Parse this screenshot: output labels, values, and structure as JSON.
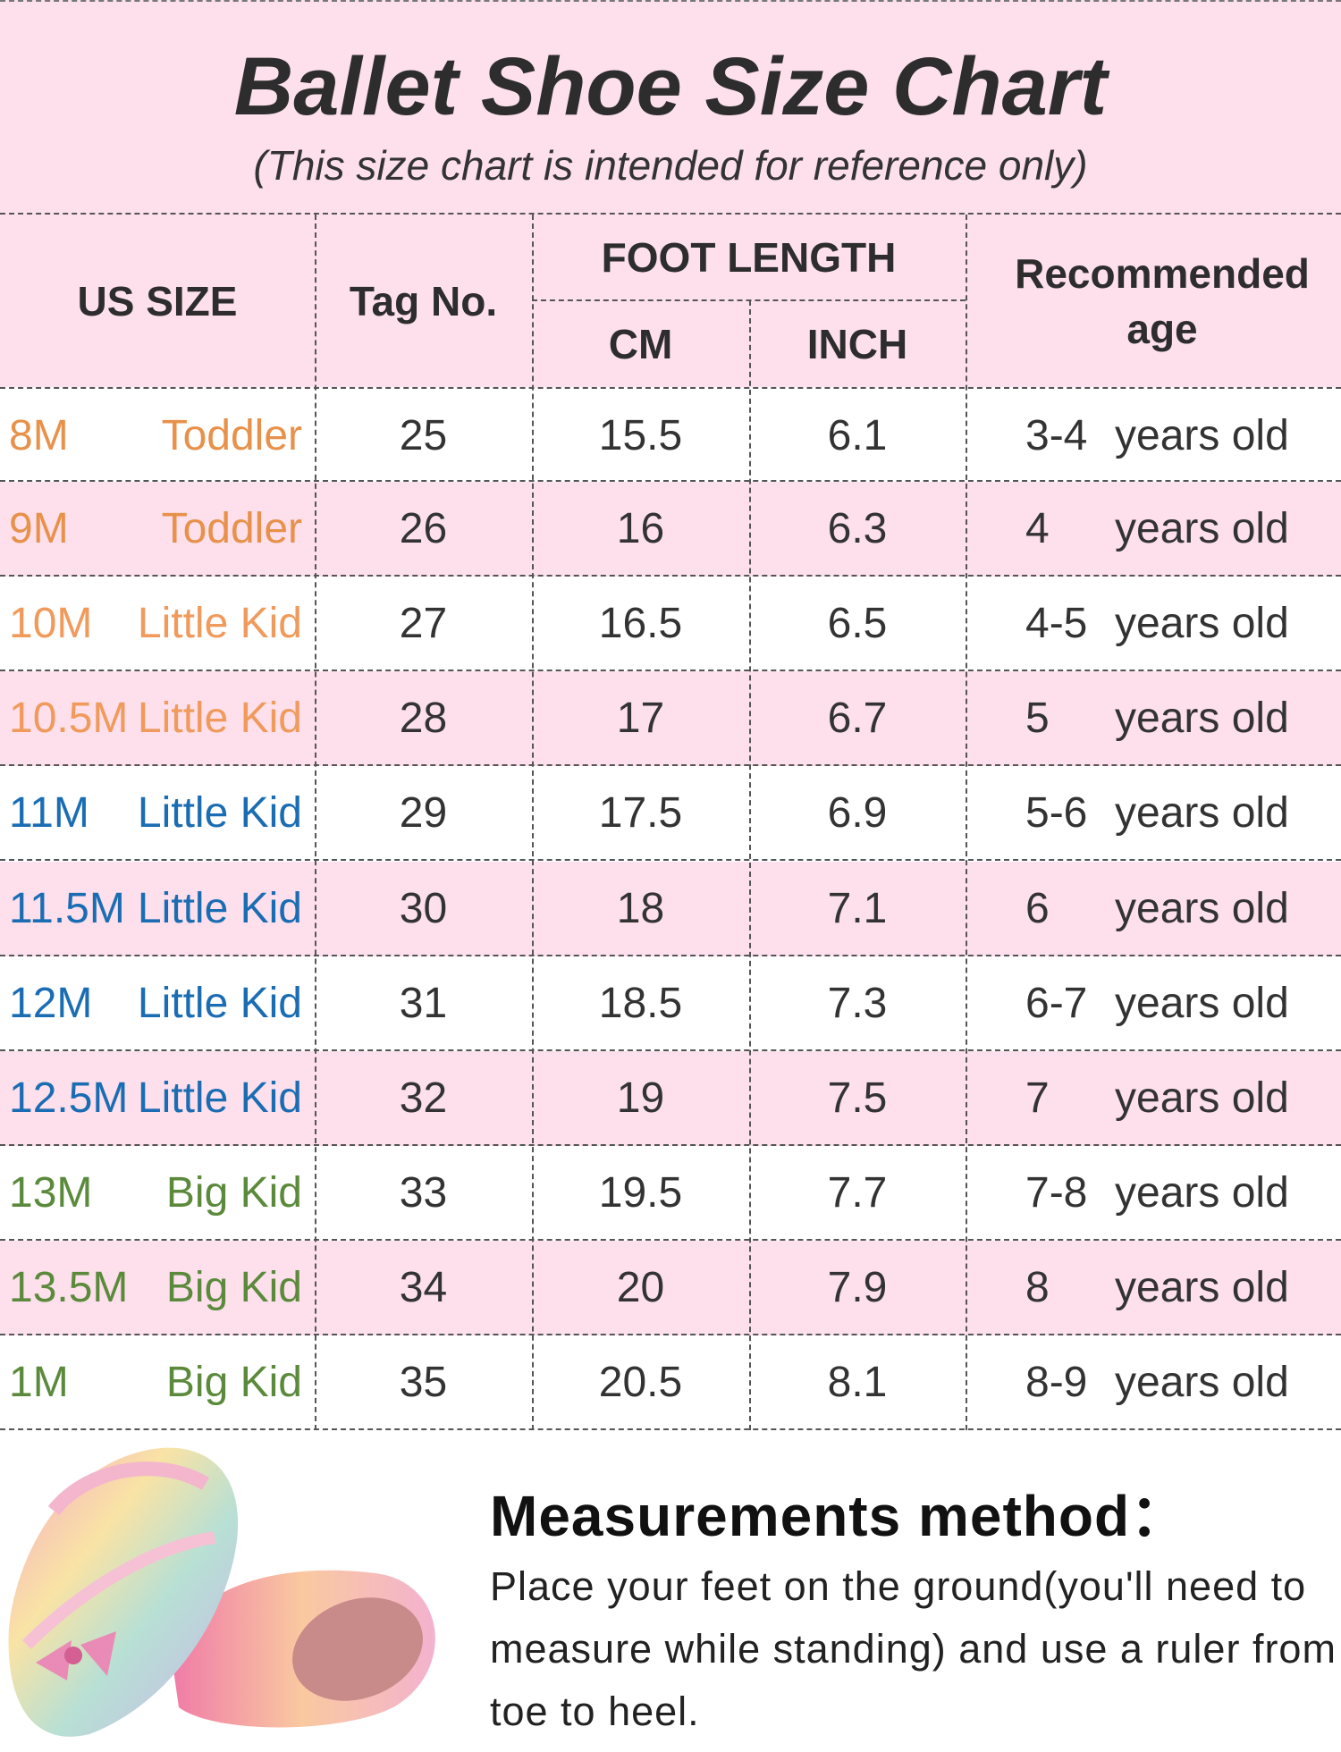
{
  "header": {
    "title": "Ballet Shoe Size Chart",
    "subtitle": "(This size chart is intended for reference only)"
  },
  "table": {
    "columns": {
      "us_size": "US SIZE",
      "tag": "Tag No.",
      "foot_length": "FOOT LENGTH",
      "cm": "CM",
      "inch": "INCH",
      "age": "Recommended age"
    },
    "rows": [
      {
        "size": "8M",
        "group": "Toddler",
        "color": "#e8914a",
        "tag": 25,
        "cm": 15.5,
        "inch": 6.1,
        "age": "3-4",
        "age_unit": "years old"
      },
      {
        "size": "9M",
        "group": "Toddler",
        "color": "#e8914a",
        "tag": 26,
        "cm": 16,
        "inch": 6.3,
        "age": "4",
        "age_unit": "years old"
      },
      {
        "size": "10M",
        "group": "Little Kid",
        "color": "#f09a5c",
        "tag": 27,
        "cm": 16.5,
        "inch": 6.5,
        "age": "4-5",
        "age_unit": "years old"
      },
      {
        "size": "10.5M",
        "group": "Little Kid",
        "color": "#f09a5c",
        "tag": 28,
        "cm": 17,
        "inch": 6.7,
        "age": "5",
        "age_unit": "years old"
      },
      {
        "size": "11M",
        "group": "Little Kid",
        "color": "#1b6db3",
        "tag": 29,
        "cm": 17.5,
        "inch": 6.9,
        "age": "5-6",
        "age_unit": "years old"
      },
      {
        "size": "11.5M",
        "group": "Little Kid",
        "color": "#1b6db3",
        "tag": 30,
        "cm": 18,
        "inch": 7.1,
        "age": "6",
        "age_unit": "years old"
      },
      {
        "size": "12M",
        "group": "Little Kid",
        "color": "#1b6db3",
        "tag": 31,
        "cm": 18.5,
        "inch": 7.3,
        "age": "6-7",
        "age_unit": "years old"
      },
      {
        "size": "12.5M",
        "group": "Little Kid",
        "color": "#1b6db3",
        "tag": 32,
        "cm": 19,
        "inch": 7.5,
        "age": "7",
        "age_unit": "years old"
      },
      {
        "size": "13M",
        "group": "Big Kid",
        "color": "#5b8a3c",
        "tag": 33,
        "cm": 19.5,
        "inch": 7.7,
        "age": "7-8",
        "age_unit": "years old"
      },
      {
        "size": "13.5M",
        "group": "Big Kid",
        "color": "#5b8a3c",
        "tag": 34,
        "cm": 20,
        "inch": 7.9,
        "age": "8",
        "age_unit": "years old"
      },
      {
        "size": "1M",
        "group": "Big Kid",
        "color": "#5b8a3c",
        "tag": 35,
        "cm": 20.5,
        "inch": 8.1,
        "age": "8-9",
        "age_unit": "years old"
      }
    ]
  },
  "measurement": {
    "title": "Measurements method：",
    "text": "Place your feet on the ground(you'll need to measure while standing) and use a ruler from toe to heel."
  }
}
